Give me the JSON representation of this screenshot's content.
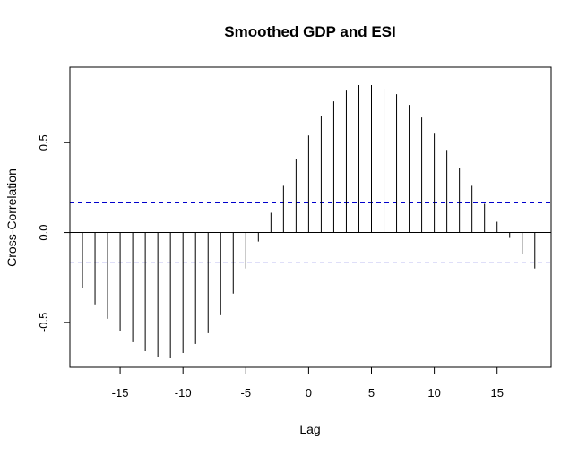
{
  "chart_data": {
    "type": "bar",
    "title": "Smoothed GDP and ESI",
    "xlabel": "Lag",
    "ylabel": "Cross-Correlation",
    "xlim": [
      -19.0,
      19.3
    ],
    "ylim": [
      -0.75,
      0.92
    ],
    "x_ticks": [
      -15,
      -10,
      -5,
      0,
      5,
      10,
      15
    ],
    "x_tick_labels": [
      "-15",
      "-10",
      "-5",
      "0",
      "5",
      "10",
      "15"
    ],
    "y_ticks": [
      -0.5,
      0.0,
      0.5
    ],
    "y_tick_labels": [
      "-0.5",
      "0.0",
      "0.5"
    ],
    "confidence_band": 0.165,
    "confidence_color": "#0000cc",
    "x": [
      -18,
      -17,
      -16,
      -15,
      -14,
      -13,
      -12,
      -11,
      -10,
      -9,
      -8,
      -7,
      -6,
      -5,
      -4,
      -3,
      -2,
      -1,
      0,
      1,
      2,
      3,
      4,
      5,
      6,
      7,
      8,
      9,
      10,
      11,
      12,
      13,
      14,
      15,
      16,
      17,
      18
    ],
    "values": [
      -0.31,
      -0.4,
      -0.48,
      -0.55,
      -0.61,
      -0.66,
      -0.69,
      -0.7,
      -0.67,
      -0.62,
      -0.56,
      -0.46,
      -0.34,
      -0.2,
      -0.05,
      0.11,
      0.26,
      0.41,
      0.54,
      0.65,
      0.73,
      0.79,
      0.82,
      0.82,
      0.8,
      0.77,
      0.71,
      0.64,
      0.55,
      0.46,
      0.36,
      0.26,
      0.16,
      0.06,
      -0.03,
      -0.12,
      -0.2
    ],
    "grid": false,
    "legend": "none"
  }
}
